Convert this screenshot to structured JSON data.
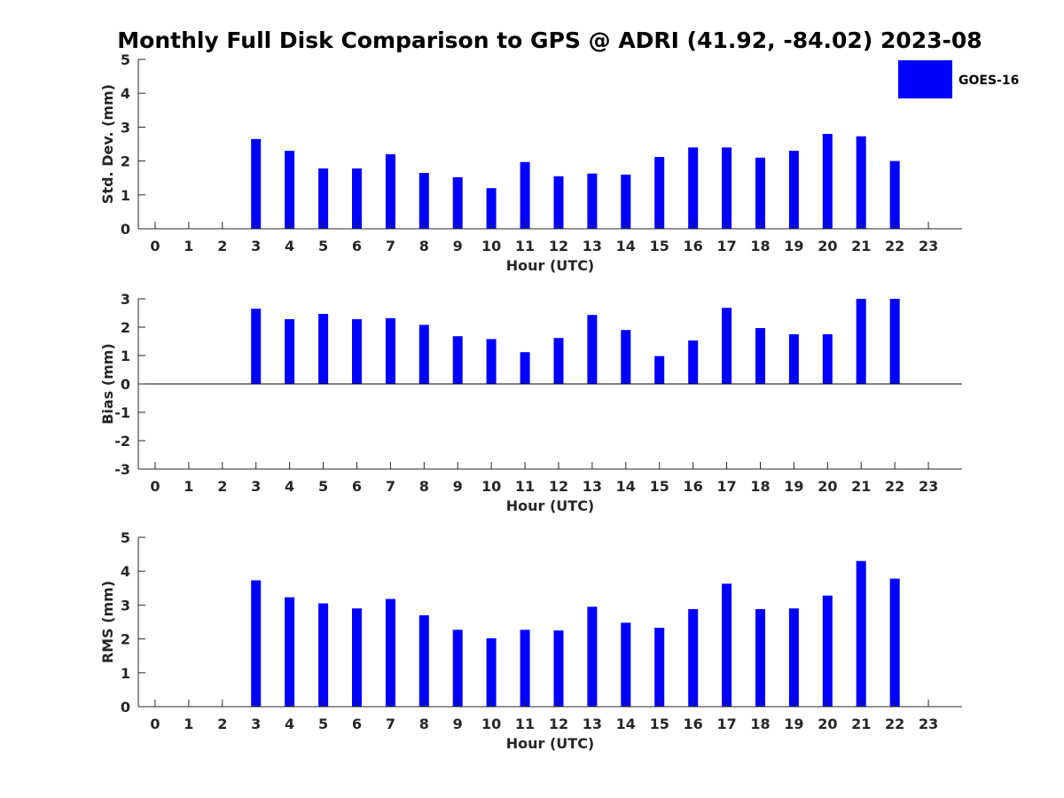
{
  "title": "Monthly Full Disk Comparison to GPS @ ADRI (41.92, -84.02) 2023-08",
  "legend": {
    "label": "GOES-16",
    "color": "#0000ff"
  },
  "colors": {
    "bar": "#0000ff",
    "axis": "#262626"
  },
  "chart_data": [
    {
      "type": "bar",
      "name": "std",
      "ylabel": "Std. Dev. (mm)",
      "xlabel": "Hour (UTC)",
      "ylim": [
        0,
        5
      ],
      "yticks": [
        0,
        1,
        2,
        3,
        4,
        5
      ],
      "categories": [
        0,
        1,
        2,
        3,
        4,
        5,
        6,
        7,
        8,
        9,
        10,
        11,
        12,
        13,
        14,
        15,
        16,
        17,
        18,
        19,
        20,
        21,
        22,
        23
      ],
      "values": [
        null,
        null,
        null,
        2.65,
        2.3,
        1.78,
        1.78,
        2.2,
        1.65,
        1.52,
        1.2,
        1.97,
        1.55,
        1.63,
        1.6,
        2.12,
        2.4,
        2.4,
        2.1,
        2.3,
        2.8,
        2.73,
        2.0,
        null
      ],
      "legend": true
    },
    {
      "type": "bar",
      "name": "bias",
      "ylabel": "Bias (mm)",
      "xlabel": "Hour (UTC)",
      "ylim": [
        -3,
        3
      ],
      "yticks": [
        -3,
        -2,
        -1,
        0,
        1,
        2,
        3
      ],
      "categories": [
        0,
        1,
        2,
        3,
        4,
        5,
        6,
        7,
        8,
        9,
        10,
        11,
        12,
        13,
        14,
        15,
        16,
        17,
        18,
        19,
        20,
        21,
        22,
        23
      ],
      "values": [
        null,
        null,
        null,
        2.65,
        2.28,
        2.47,
        2.28,
        2.32,
        2.08,
        1.68,
        1.58,
        1.12,
        1.62,
        2.43,
        1.9,
        0.98,
        1.53,
        2.68,
        1.97,
        1.75,
        1.75,
        3.0,
        3.0,
        null
      ],
      "zero_line": true,
      "legend": false
    },
    {
      "type": "bar",
      "name": "rms",
      "ylabel": "RMS (mm)",
      "xlabel": "Hour (UTC)",
      "ylim": [
        0,
        5
      ],
      "yticks": [
        0,
        1,
        2,
        3,
        4,
        5
      ],
      "categories": [
        0,
        1,
        2,
        3,
        4,
        5,
        6,
        7,
        8,
        9,
        10,
        11,
        12,
        13,
        14,
        15,
        16,
        17,
        18,
        19,
        20,
        21,
        22,
        23
      ],
      "values": [
        null,
        null,
        null,
        3.73,
        3.23,
        3.05,
        2.9,
        3.18,
        2.7,
        2.27,
        2.02,
        2.27,
        2.25,
        2.95,
        2.48,
        2.33,
        2.88,
        3.63,
        2.88,
        2.9,
        3.28,
        4.3,
        3.78,
        null
      ],
      "legend": false
    }
  ]
}
